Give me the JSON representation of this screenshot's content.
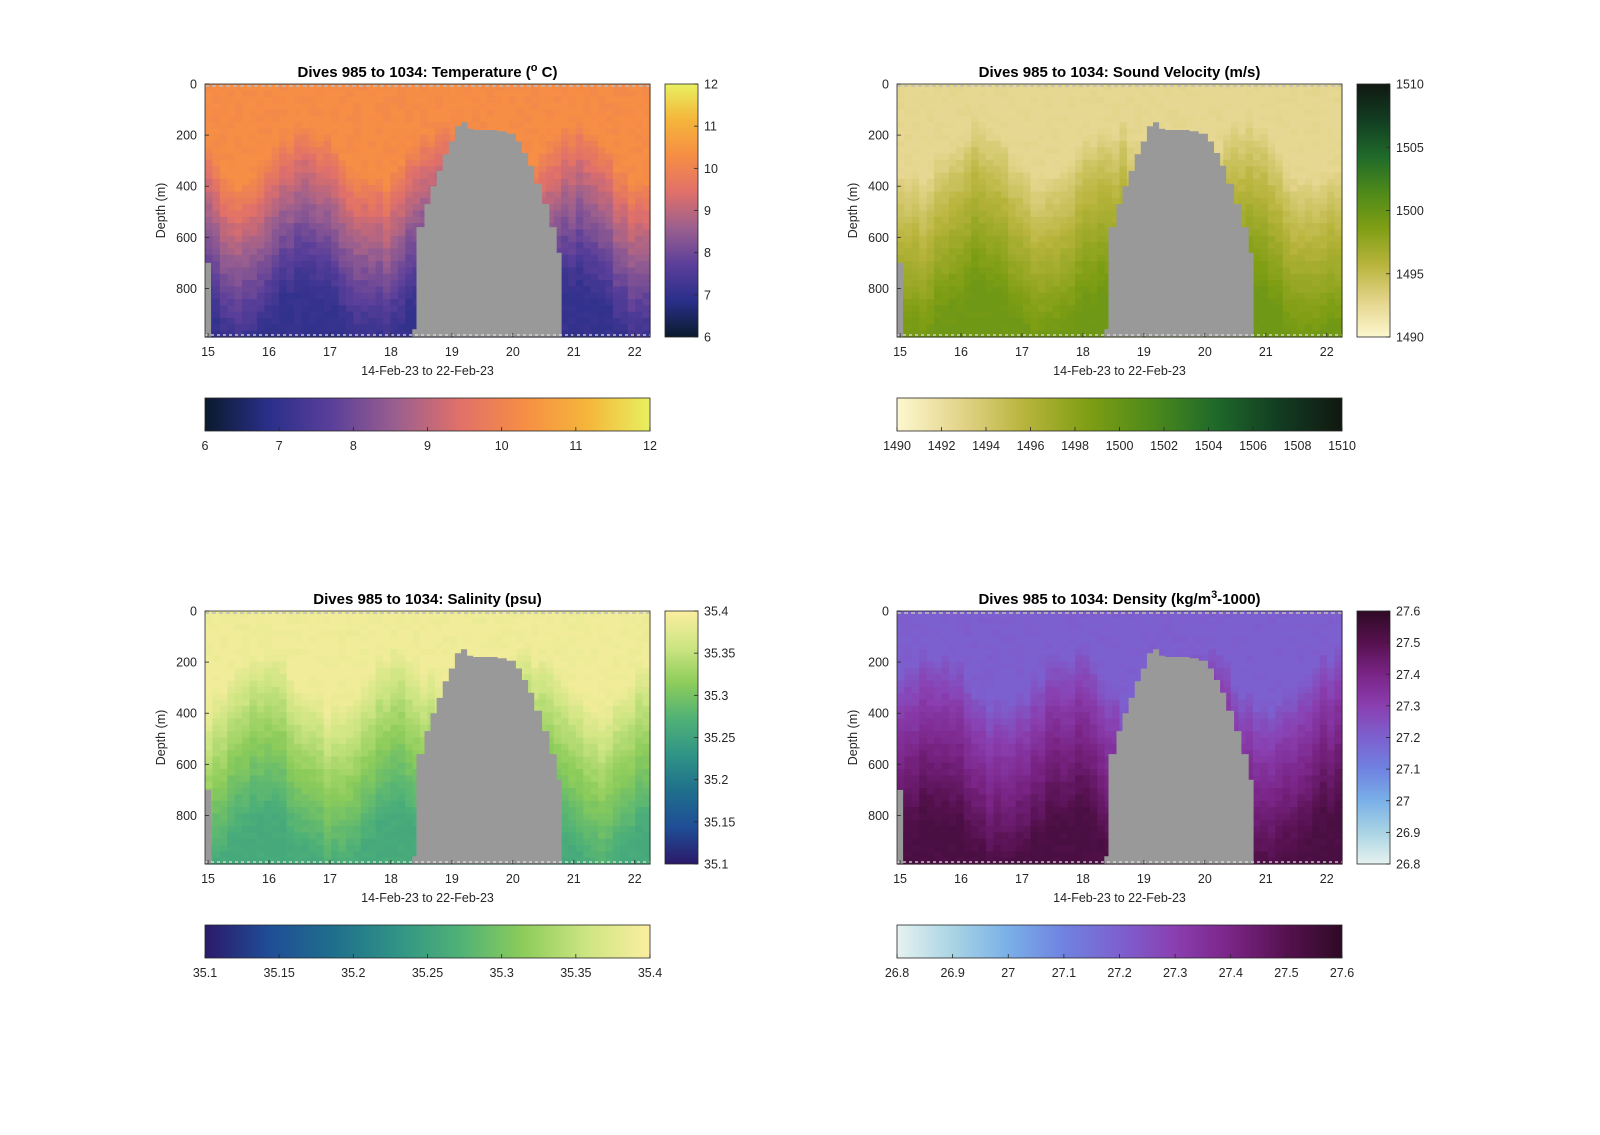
{
  "chart_data": [
    {
      "type": "heatmap",
      "title": "Dives 985 to 1034: Temperature (",
      "title_sup": "o",
      "title_post": " C)",
      "xlabel": "14-Feb-23 to 22-Feb-23",
      "ylabel": "Depth (m)",
      "x_ticks": [
        "15",
        "16",
        "17",
        "18",
        "19",
        "20",
        "21",
        "22"
      ],
      "xlim": [
        14.95,
        22.25
      ],
      "y_ticks": [
        "0",
        "200",
        "400",
        "600",
        "800"
      ],
      "ylim": [
        0,
        990
      ],
      "y_reversed": true,
      "colorbar_vertical_ticks": [
        "6",
        "7",
        "8",
        "9",
        "10",
        "11",
        "12"
      ],
      "colorbar_horizontal_ticks": [
        "6",
        "7",
        "8",
        "9",
        "10",
        "11",
        "12"
      ],
      "clim": [
        6,
        12
      ],
      "colormap": [
        "#0a1a2c",
        "#2a2f8a",
        "#5b3f9a",
        "#9a5f8f",
        "#e0706a",
        "#f68d45",
        "#f5b53a",
        "#e8f060"
      ],
      "surface_value": 10.3,
      "deep_value": 7.0,
      "no_data_color": "#999999",
      "no_data_region": "days 18.3 to 20.8 below ~160 m (grey), seafloor shading"
    },
    {
      "type": "heatmap",
      "title": "Dives 985 to 1034: Sound Velocity (m/s)",
      "xlabel": "14-Feb-23 to 22-Feb-23",
      "ylabel": "Depth (m)",
      "x_ticks": [
        "15",
        "16",
        "17",
        "18",
        "19",
        "20",
        "21",
        "22"
      ],
      "xlim": [
        14.95,
        22.25
      ],
      "y_ticks": [
        "0",
        "200",
        "400",
        "600",
        "800"
      ],
      "ylim": [
        0,
        990
      ],
      "y_reversed": true,
      "colorbar_vertical_ticks": [
        "1490",
        "1495",
        "1500",
        "1505",
        "1510"
      ],
      "colorbar_horizontal_ticks": [
        "1490",
        "1492",
        "1494",
        "1496",
        "1498",
        "1500",
        "1502",
        "1504",
        "1506",
        "1508",
        "1510"
      ],
      "clim": [
        1490,
        1510
      ],
      "colormap": [
        "#fdf7cf",
        "#e3d48a",
        "#b8b43c",
        "#7f9e14",
        "#4e8a1a",
        "#1f6a2a",
        "#123d22",
        "#101810"
      ],
      "surface_value": 1492.5,
      "deep_value": 1499.5,
      "no_data_color": "#999999"
    },
    {
      "type": "heatmap",
      "title": "Dives 985 to 1034: Salinity (psu)",
      "xlabel": "14-Feb-23 to 22-Feb-23",
      "ylabel": "Depth (m)",
      "x_ticks": [
        "15",
        "16",
        "17",
        "18",
        "19",
        "20",
        "21",
        "22"
      ],
      "xlim": [
        14.95,
        22.25
      ],
      "y_ticks": [
        "0",
        "200",
        "400",
        "600",
        "800"
      ],
      "ylim": [
        0,
        990
      ],
      "y_reversed": true,
      "colorbar_vertical_ticks": [
        "35.1",
        "35.15",
        "35.2",
        "35.25",
        "35.3",
        "35.35",
        "35.4"
      ],
      "colorbar_horizontal_ticks": [
        "35.1",
        "35.15",
        "35.2",
        "35.25",
        "35.3",
        "35.35",
        "35.4"
      ],
      "clim": [
        35.1,
        35.4
      ],
      "colormap": [
        "#2b1a6a",
        "#1f4d96",
        "#1f6e8c",
        "#2f9386",
        "#4fb177",
        "#8ccc5a",
        "#cde582",
        "#fbeea0"
      ],
      "surface_value": 35.39,
      "deep_value": 35.26,
      "no_data_color": "#999999"
    },
    {
      "type": "heatmap",
      "title": "Dives 985 to 1034: Density (kg/m",
      "title_sup": "3",
      "title_post": "-1000)",
      "xlabel": "14-Feb-23 to 22-Feb-23",
      "ylabel": "Depth (m)",
      "x_ticks": [
        "15",
        "16",
        "17",
        "18",
        "19",
        "20",
        "21",
        "22"
      ],
      "xlim": [
        14.95,
        22.25
      ],
      "y_ticks": [
        "0",
        "200",
        "400",
        "600",
        "800"
      ],
      "ylim": [
        0,
        990
      ],
      "y_reversed": true,
      "colorbar_vertical_ticks": [
        "26.8",
        "26.9",
        "27",
        "27.1",
        "27.2",
        "27.3",
        "27.4",
        "27.5",
        "27.6"
      ],
      "colorbar_horizontal_ticks": [
        "26.8",
        "26.9",
        "27",
        "27.1",
        "27.2",
        "27.3",
        "27.4",
        "27.5",
        "27.6"
      ],
      "clim": [
        26.8,
        27.6
      ],
      "colormap": [
        "#e6f2f0",
        "#a9d4e4",
        "#7ab0e8",
        "#6f82e0",
        "#7d60cf",
        "#8a3fb0",
        "#7a2486",
        "#56114f",
        "#2e0a25"
      ],
      "surface_value": 27.2,
      "deep_value": 27.53,
      "no_data_color": "#999999"
    }
  ]
}
